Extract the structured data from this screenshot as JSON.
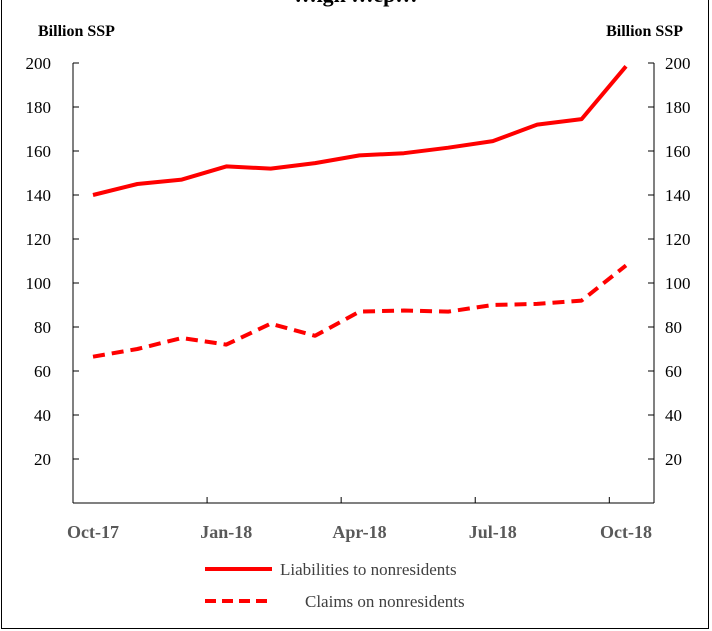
{
  "chart_data": {
    "type": "line",
    "title": "…ign …ep…",
    "ylabel_left": "Billion SSP",
    "ylabel_right": "Billion SSP",
    "ylim": [
      0,
      200
    ],
    "yticks": [
      20,
      40,
      60,
      80,
      100,
      120,
      140,
      160,
      180,
      200
    ],
    "x": [
      "Oct-17",
      "Nov-17",
      "Dec-17",
      "Jan-18",
      "Feb-18",
      "Mar-18",
      "Apr-18",
      "May-18",
      "Jun-18",
      "Jul-18",
      "Aug-18",
      "Sep-18",
      "Oct-18"
    ],
    "xtick_labels": [
      "Oct-17",
      "Jan-18",
      "Apr-18",
      "Jul-18",
      "Oct-18"
    ],
    "series": [
      {
        "name": "Liabilities to nonresidents",
        "style": "solid",
        "color": "#ff0000",
        "values": [
          140,
          145,
          147,
          153,
          152,
          154.5,
          158,
          159,
          161.5,
          164.5,
          172,
          174.5,
          198.5
        ]
      },
      {
        "name": "Claims on nonresidents",
        "style": "dashed",
        "color": "#ff0000",
        "values": [
          66.5,
          70,
          75,
          72,
          81.5,
          76,
          87,
          87.5,
          87,
          90,
          90.5,
          92,
          108
        ]
      }
    ],
    "grid": false,
    "legend_position": "bottom"
  }
}
